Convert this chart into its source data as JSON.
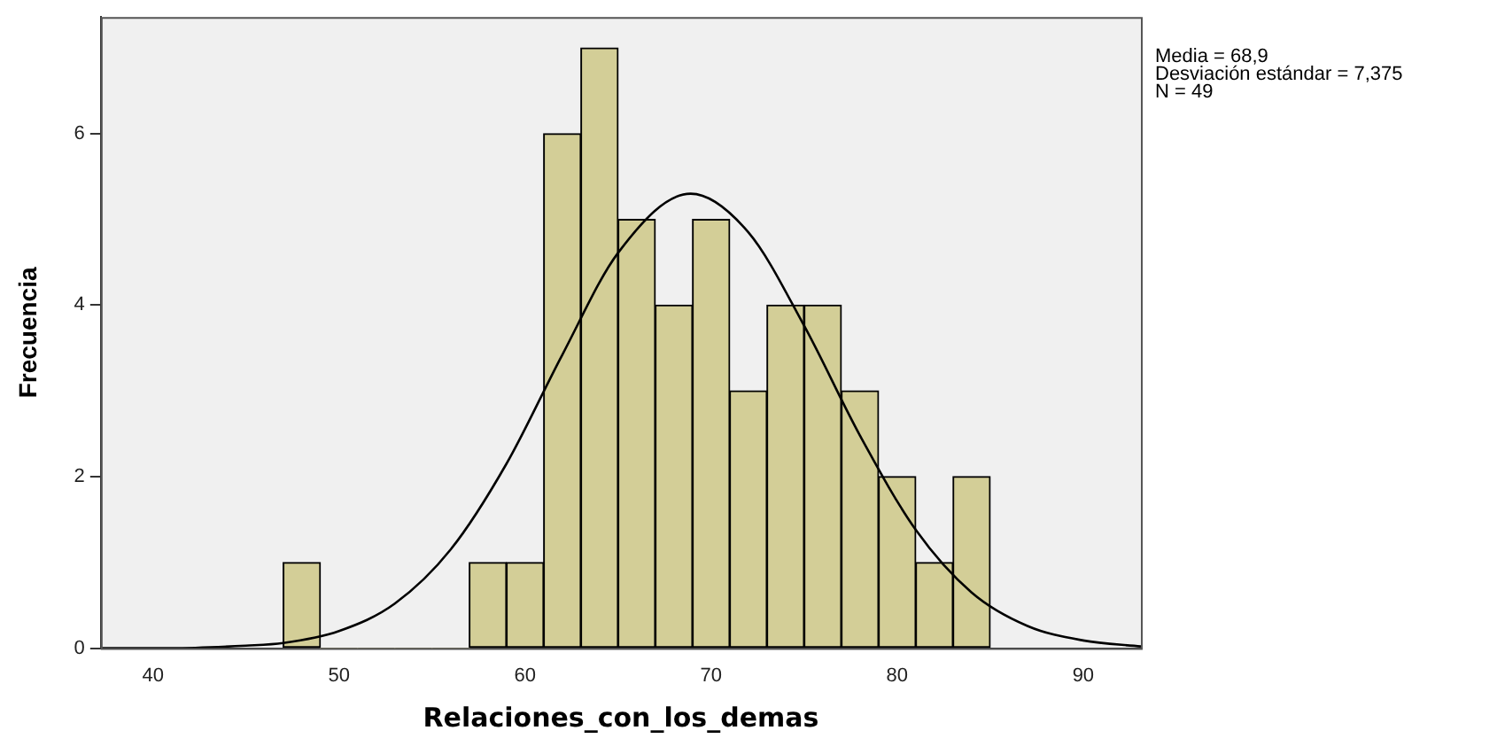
{
  "chart_data": {
    "type": "histogram",
    "xlabel": "Relaciones_con_los_demas",
    "ylabel": "Frecuencia",
    "annotations": [
      "Media = 68,9",
      "Desviación estándar = 7,375",
      "N = 49"
    ],
    "bins": [
      47,
      49,
      51,
      53,
      55,
      57,
      59,
      61,
      63,
      65,
      67,
      69,
      71,
      73,
      75,
      77,
      79,
      81,
      83,
      85
    ],
    "series": [
      {
        "color": "#d3ce97",
        "values": [
          1,
          0,
          0,
          0,
          0,
          1,
          1,
          6,
          7,
          5,
          4,
          5,
          3,
          4,
          4,
          3,
          2,
          1,
          2
        ]
      },
      {
        "type": "line",
        "color": "#000000",
        "x": [
          37.2,
          41,
          45,
          47,
          50,
          53,
          56,
          59,
          62,
          65,
          68.9,
          72,
          75,
          78,
          81,
          84,
          87,
          90,
          93.1
        ],
        "values": [
          0,
          0,
          0.03,
          0.06,
          0.2,
          0.52,
          1.15,
          2.15,
          3.42,
          4.61,
          5.3,
          4.85,
          3.76,
          2.48,
          1.38,
          0.65,
          0.26,
          0.09,
          0.02
        ]
      }
    ],
    "xlim": [
      37.2,
      93.1
    ],
    "xticks": [
      40,
      50,
      60,
      70,
      80,
      90
    ],
    "ylim": [
      0,
      7.36
    ],
    "yticks": [
      0,
      2,
      4,
      6
    ],
    "grid": false,
    "legend": false,
    "marker": "none",
    "line_style": "solid"
  }
}
